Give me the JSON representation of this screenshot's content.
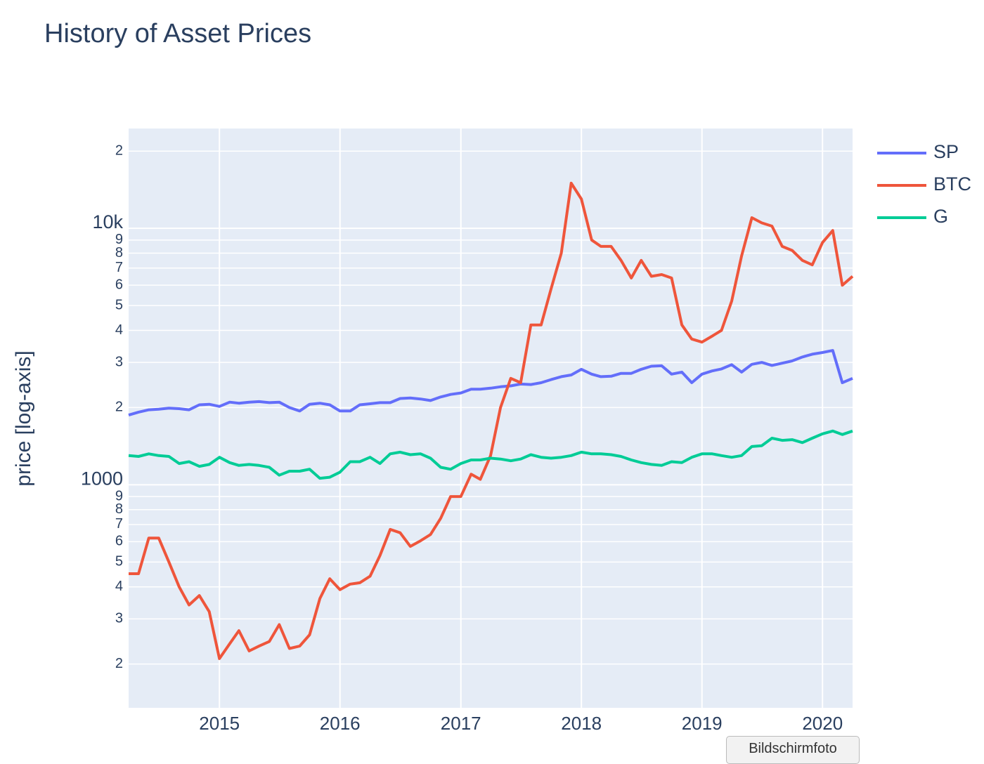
{
  "chart_data": {
    "type": "line",
    "title": "History of Asset Prices",
    "y_label": "price [log-axis]",
    "yscale": "log",
    "grid": true,
    "legend": "right",
    "background": "#e5ecf6",
    "xlim": [
      "2014-04",
      "2020-04"
    ],
    "xticks": [
      "2015",
      "2016",
      "2017",
      "2018",
      "2019",
      "2020"
    ],
    "ylim": [
      135,
      24500
    ],
    "yticks": [
      {
        "value": 200,
        "label": "2"
      },
      {
        "value": 300,
        "label": "3"
      },
      {
        "value": 400,
        "label": "4"
      },
      {
        "value": 500,
        "label": "5"
      },
      {
        "value": 600,
        "label": "6"
      },
      {
        "value": 700,
        "label": "7"
      },
      {
        "value": 800,
        "label": "8"
      },
      {
        "value": 900,
        "label": "9"
      },
      1000,
      {
        "value": 2000,
        "label": "2"
      },
      {
        "value": 3000,
        "label": "3"
      },
      {
        "value": 4000,
        "label": "4"
      },
      {
        "value": 5000,
        "label": "5"
      },
      {
        "value": 6000,
        "label": "6"
      },
      {
        "value": 7000,
        "label": "7"
      },
      {
        "value": 8000,
        "label": "8"
      },
      {
        "value": 9000,
        "label": "9"
      },
      {
        "value": 10000,
        "label": "10k"
      },
      {
        "value": 20000,
        "label": "2"
      }
    ],
    "x": [
      "2014-04",
      "2014-05",
      "2014-06",
      "2014-07",
      "2014-08",
      "2014-09",
      "2014-10",
      "2014-11",
      "2014-12",
      "2015-01",
      "2015-02",
      "2015-03",
      "2015-04",
      "2015-05",
      "2015-06",
      "2015-07",
      "2015-08",
      "2015-09",
      "2015-10",
      "2015-11",
      "2015-12",
      "2016-01",
      "2016-02",
      "2016-03",
      "2016-04",
      "2016-05",
      "2016-06",
      "2016-07",
      "2016-08",
      "2016-09",
      "2016-10",
      "2016-11",
      "2016-12",
      "2017-01",
      "2017-02",
      "2017-03",
      "2017-04",
      "2017-05",
      "2017-06",
      "2017-07",
      "2017-08",
      "2017-09",
      "2017-10",
      "2017-11",
      "2017-12",
      "2018-01",
      "2018-02",
      "2018-03",
      "2018-04",
      "2018-05",
      "2018-06",
      "2018-07",
      "2018-08",
      "2018-09",
      "2018-10",
      "2018-11",
      "2018-12",
      "2019-01",
      "2019-02",
      "2019-03",
      "2019-04",
      "2019-05",
      "2019-06",
      "2019-07",
      "2019-08",
      "2019-09",
      "2019-10",
      "2019-11",
      "2019-12",
      "2020-01",
      "2020-02",
      "2020-03",
      "2020-04"
    ],
    "series": [
      {
        "name": "SP",
        "color": "#636efa",
        "values": [
          1870,
          1920,
          1960,
          1970,
          1990,
          1980,
          1960,
          2050,
          2060,
          2020,
          2100,
          2080,
          2100,
          2110,
          2090,
          2100,
          2000,
          1940,
          2060,
          2080,
          2050,
          1940,
          1940,
          2050,
          2070,
          2090,
          2090,
          2170,
          2180,
          2160,
          2130,
          2200,
          2250,
          2280,
          2360,
          2360,
          2380,
          2410,
          2430,
          2470,
          2460,
          2500,
          2570,
          2640,
          2680,
          2820,
          2700,
          2640,
          2650,
          2720,
          2720,
          2820,
          2900,
          2910,
          2700,
          2750,
          2500,
          2700,
          2780,
          2830,
          2940,
          2750,
          2950,
          3000,
          2920,
          2980,
          3040,
          3150,
          3230,
          3280,
          3340,
          2500,
          2600
        ]
      },
      {
        "name": "BTC",
        "color": "#ef553b",
        "values": [
          450,
          450,
          620,
          620,
          500,
          400,
          340,
          370,
          320,
          210,
          240,
          270,
          225,
          235,
          245,
          285,
          230,
          235,
          260,
          360,
          430,
          390,
          410,
          415,
          440,
          530,
          670,
          650,
          575,
          605,
          640,
          740,
          900,
          900,
          1100,
          1050,
          1300,
          2000,
          2600,
          2500,
          4200,
          4200,
          5800,
          8000,
          15000,
          13000,
          9000,
          8500,
          8500,
          7500,
          6400,
          7500,
          6500,
          6600,
          6400,
          4200,
          3700,
          3600,
          3800,
          4000,
          5200,
          7800,
          11000,
          10500,
          10200,
          8500,
          8200,
          7500,
          7200,
          8800,
          9800,
          6000,
          6500
        ]
      },
      {
        "name": "G",
        "color": "#00cc96",
        "values": [
          1300,
          1290,
          1320,
          1300,
          1290,
          1210,
          1230,
          1180,
          1200,
          1280,
          1220,
          1190,
          1200,
          1190,
          1170,
          1090,
          1130,
          1130,
          1150,
          1060,
          1070,
          1120,
          1230,
          1230,
          1280,
          1210,
          1320,
          1340,
          1310,
          1320,
          1270,
          1170,
          1150,
          1210,
          1250,
          1250,
          1270,
          1260,
          1240,
          1260,
          1310,
          1280,
          1270,
          1280,
          1300,
          1340,
          1320,
          1320,
          1310,
          1290,
          1250,
          1220,
          1200,
          1190,
          1230,
          1220,
          1280,
          1320,
          1320,
          1300,
          1280,
          1300,
          1410,
          1420,
          1520,
          1490,
          1500,
          1460,
          1520,
          1580,
          1620,
          1570,
          1620
        ]
      }
    ]
  },
  "tooltip": "Bildschirmfoto"
}
